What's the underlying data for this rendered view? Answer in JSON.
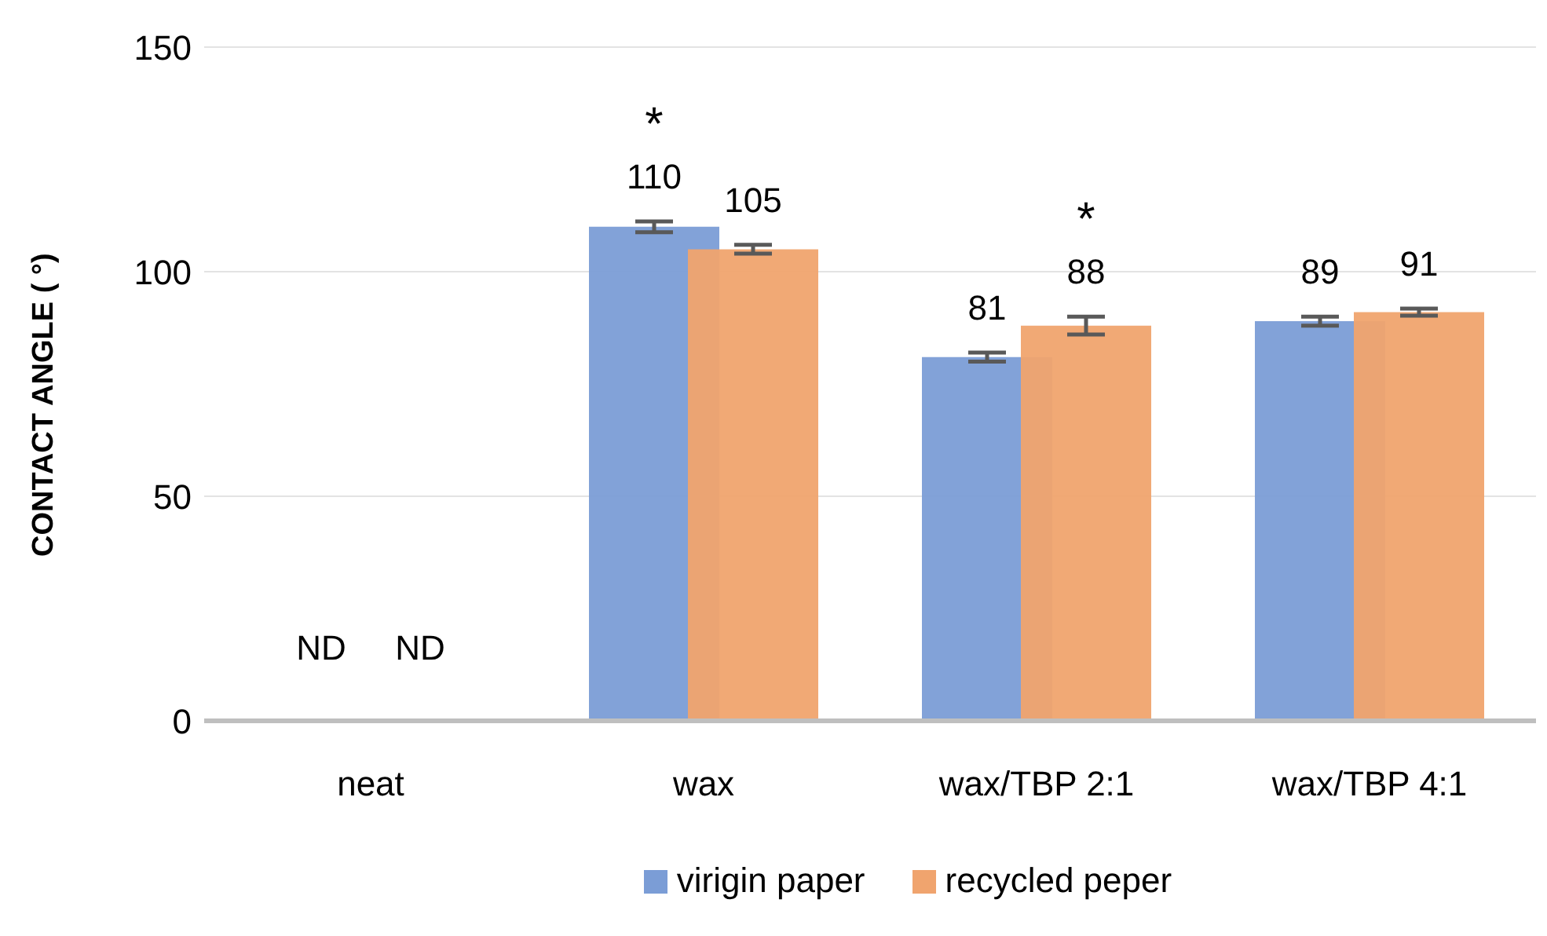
{
  "chart_data": {
    "type": "bar",
    "ylabel": "CONTACT ANGLE ( °)",
    "categories": [
      "neat",
      "wax",
      "wax/TBP 2:1",
      "wax/TBP 4:1"
    ],
    "series": [
      {
        "name": "virigin paper",
        "color": "#7b9dd6",
        "values": [
          null,
          110,
          81,
          89
        ],
        "errors": [
          null,
          1.2,
          1,
          1
        ],
        "value_labels": [
          "ND",
          "110",
          "81",
          "89"
        ]
      },
      {
        "name": "recycled peper",
        "color": "#f0a46e",
        "values": [
          null,
          105,
          88,
          91
        ],
        "errors": [
          null,
          1,
          2,
          0.8
        ],
        "value_labels": [
          "ND",
          "105",
          "88",
          "91"
        ]
      }
    ],
    "annotations": [
      {
        "text": "*",
        "x": "wax",
        "y": 110
      },
      {
        "text": "*",
        "x": "wax/TBP 2:1",
        "y": 88
      }
    ],
    "ylim": [
      0,
      150
    ],
    "yticks": [
      0,
      50,
      100,
      150
    ],
    "grid": "y",
    "legend": "bottom"
  }
}
